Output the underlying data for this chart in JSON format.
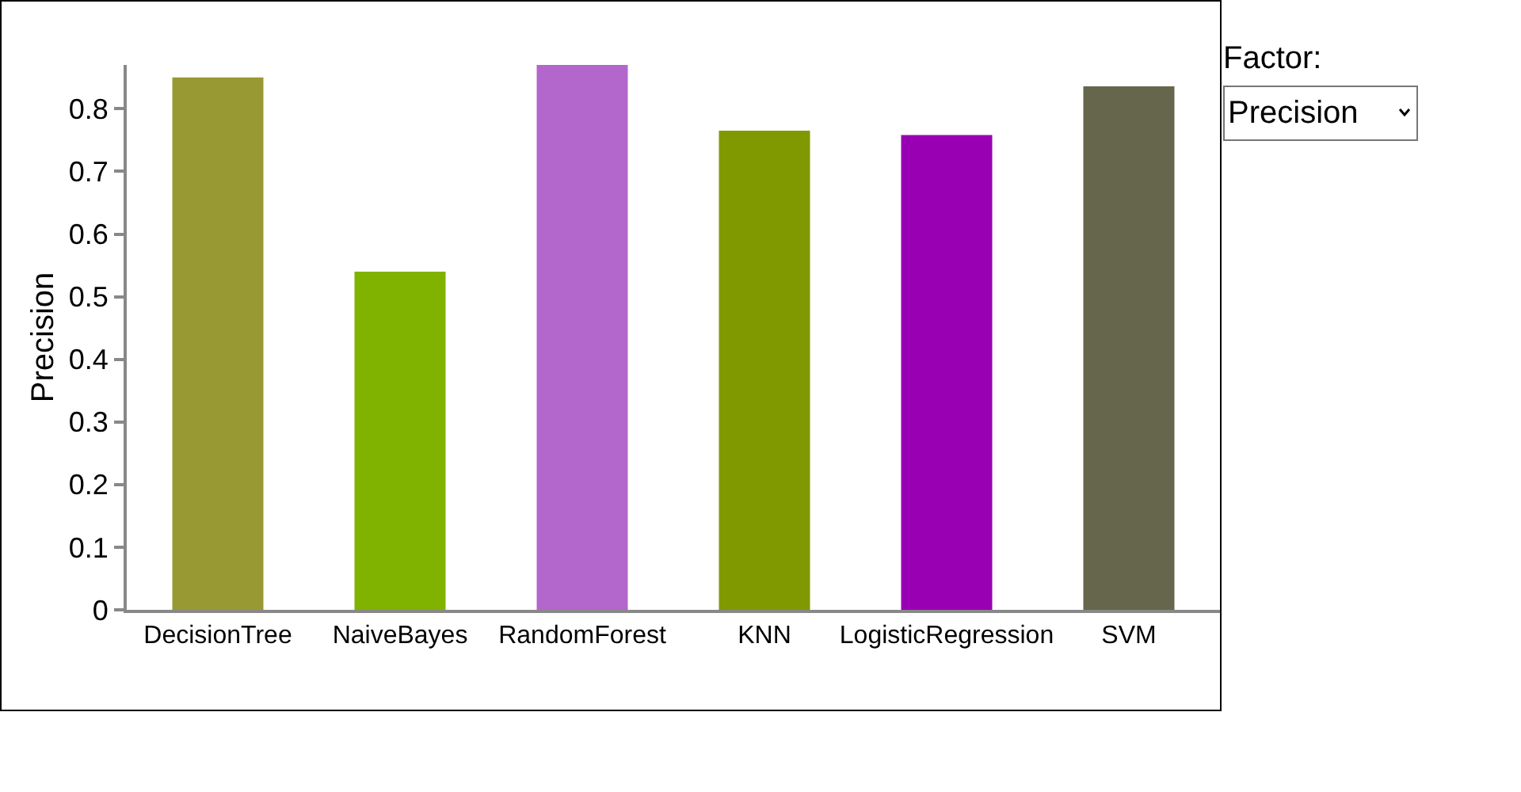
{
  "chart_data": {
    "type": "bar",
    "ylabel": "Precision",
    "categories": [
      "DecisionTree",
      "NaiveBayes",
      "RandomForest",
      "KNN",
      "LogisticRegression",
      "SVM"
    ],
    "values": [
      0.85,
      0.54,
      0.87,
      0.765,
      0.758,
      0.836
    ],
    "colors": [
      "#999933",
      "#80b300",
      "#b366cc",
      "#809900",
      "#9900b3",
      "#66664d"
    ],
    "ylim": [
      0,
      0.87
    ],
    "yticks": [
      0,
      0.1,
      0.2,
      0.3,
      0.4,
      0.5,
      0.6,
      0.7,
      0.8
    ],
    "annotations": [
      "Factor:",
      "Precision"
    ]
  }
}
